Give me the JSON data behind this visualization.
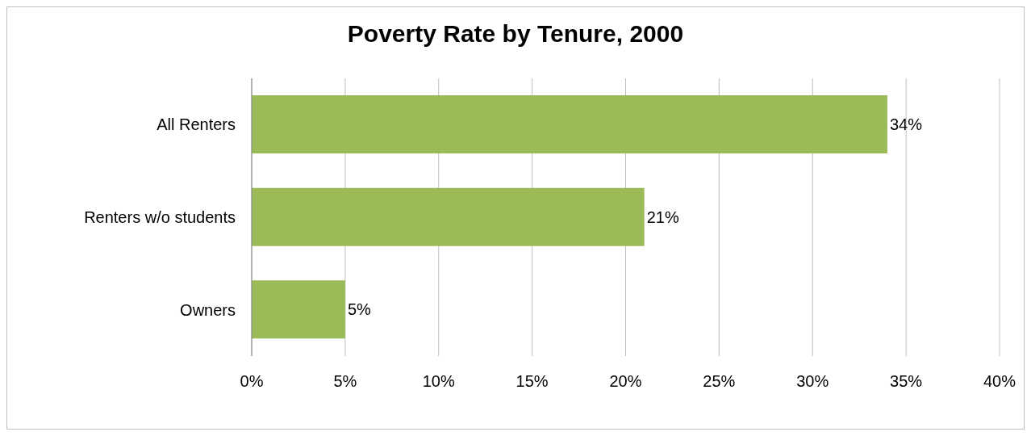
{
  "chart_data": {
    "type": "bar",
    "orientation": "horizontal",
    "title": "Poverty Rate by Tenure, 2000",
    "categories": [
      "All Renters",
      "Renters w/o students",
      "Owners"
    ],
    "values": [
      34,
      21,
      5
    ],
    "value_labels": [
      "34%",
      "21%",
      "5%"
    ],
    "color": "#9bbb59",
    "xlim": [
      0,
      40
    ],
    "xticks": [
      {
        "value": 0,
        "label": "0%"
      },
      {
        "value": 5,
        "label": "5%"
      },
      {
        "value": 10,
        "label": "10%"
      },
      {
        "value": 15,
        "label": "15%"
      },
      {
        "value": 20,
        "label": "20%"
      },
      {
        "value": 25,
        "label": "25%"
      },
      {
        "value": 30,
        "label": "30%"
      },
      {
        "value": 35,
        "label": "35%"
      },
      {
        "value": 40,
        "label": "40%"
      }
    ],
    "grid": "x"
  }
}
